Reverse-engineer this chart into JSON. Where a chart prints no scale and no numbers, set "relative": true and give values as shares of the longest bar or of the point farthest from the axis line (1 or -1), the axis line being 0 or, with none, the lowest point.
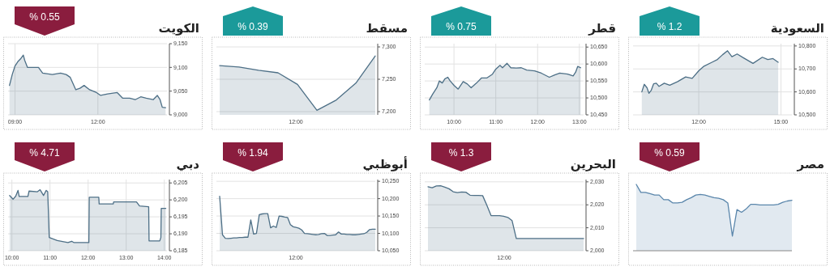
{
  "chart_data": [
    {
      "type": "area",
      "title": "الكويت",
      "annotations": [
        "% 0.55"
      ],
      "color": "#4d6f86",
      "grid": true,
      "xlim": [
        8.75,
        14.5
      ],
      "xticks": [
        {
          "value": 9,
          "label": "09:00"
        },
        {
          "value": 12,
          "label": "12:00"
        }
      ],
      "ylim": [
        9000,
        9150
      ],
      "yticks": [
        {
          "value": 9000,
          "label": "9,000"
        },
        {
          "value": 9050,
          "label": "9,050"
        },
        {
          "value": 9100,
          "label": "9,100"
        },
        {
          "value": 9150,
          "label": "9,150"
        }
      ],
      "x": [
        8.8,
        8.9,
        9.0,
        9.1,
        9.2,
        9.3,
        9.35,
        9.45,
        9.55,
        9.85,
        10.0,
        10.35,
        10.65,
        10.85,
        11.0,
        11.2,
        11.35,
        11.5,
        11.7,
        11.95,
        12.1,
        12.35,
        12.7,
        12.9,
        13.15,
        13.35,
        13.55,
        13.75,
        14.0,
        14.15,
        14.25,
        14.33,
        14.45
      ],
      "values": [
        9062,
        9085,
        9103,
        9112,
        9118,
        9126,
        9115,
        9100,
        9100,
        9100,
        9088,
        9085,
        9088,
        9085,
        9079,
        9053,
        9056,
        9062,
        9053,
        9047,
        9041,
        9044,
        9047,
        9035,
        9035,
        9032,
        9038,
        9035,
        9032,
        9041,
        9032,
        9016,
        9015
      ]
    },
    {
      "type": "area",
      "title": "مسقط",
      "annotations": [
        "% 0.39",
        "12:00"
      ],
      "color": "#4d6f86",
      "grid": true,
      "ylim": [
        7195,
        7305
      ],
      "yticks": [
        {
          "value": 7200,
          "label": "7,200"
        },
        {
          "value": 7250,
          "label": "7,250"
        },
        {
          "value": 7300,
          "label": "7,300"
        }
      ],
      "categories": [
        null,
        null,
        null,
        null,
        null,
        null,
        null,
        null,
        null
      ],
      "values": [
        7271,
        7269,
        7264,
        7260,
        7242,
        7202,
        7218,
        7244,
        7286
      ]
    },
    {
      "type": "area",
      "title": "قطر",
      "annotations": [
        "% 0.75"
      ],
      "color": "#4d6f86",
      "grid": true,
      "xlim": [
        9.3,
        13.1
      ],
      "xticks": [
        {
          "value": 10,
          "label": "10:00"
        },
        {
          "value": 11,
          "label": "11:00"
        },
        {
          "value": 12,
          "label": "12:00"
        },
        {
          "value": 13,
          "label": "13:00"
        }
      ],
      "ylim": [
        10450,
        10660
      ],
      "yticks": [
        {
          "value": 10450,
          "label": "10,450"
        },
        {
          "value": 10500,
          "label": "10,500"
        },
        {
          "value": 10550,
          "label": "10,550"
        },
        {
          "value": 10600,
          "label": "10,600"
        },
        {
          "value": 10650,
          "label": "10,650"
        }
      ],
      "x": [
        9.41,
        9.49,
        9.59,
        9.65,
        9.72,
        9.78,
        9.85,
        9.91,
        10.0,
        10.1,
        10.22,
        10.32,
        10.41,
        10.54,
        10.66,
        10.79,
        10.92,
        11.0,
        11.1,
        11.16,
        11.27,
        11.36,
        11.49,
        11.61,
        11.74,
        11.93,
        12.09,
        12.28,
        12.41,
        12.53,
        12.72,
        12.85,
        12.91,
        12.96,
        13.03
      ],
      "values": [
        10494,
        10511,
        10530,
        10550,
        10544,
        10556,
        10561,
        10550,
        10537,
        10526,
        10548,
        10541,
        10530,
        10544,
        10559,
        10559,
        10570,
        10585,
        10596,
        10589,
        10602,
        10589,
        10588,
        10589,
        10582,
        10580,
        10573,
        10561,
        10568,
        10573,
        10570,
        10565,
        10576,
        10593,
        10589
      ]
    },
    {
      "type": "area",
      "title": "السعودية",
      "annotations": [
        "% 1.2"
      ],
      "color": "#4d6f86",
      "grid": true,
      "xlim": [
        9.6,
        15.4
      ],
      "xticks": [
        {
          "value": 12,
          "label": "12:00"
        },
        {
          "value": 15,
          "label": "15:00"
        }
      ],
      "ylim": [
        10500,
        10810
      ],
      "yticks": [
        {
          "value": 10500,
          "label": "10,500"
        },
        {
          "value": 10600,
          "label": "10,600"
        },
        {
          "value": 10700,
          "label": "10,700"
        },
        {
          "value": 10800,
          "label": "10,800"
        }
      ],
      "x": [
        9.92,
        10.01,
        10.11,
        10.18,
        10.26,
        10.35,
        10.45,
        10.55,
        10.74,
        10.94,
        11.23,
        11.52,
        11.76,
        12.0,
        12.19,
        12.48,
        12.68,
        12.87,
        13.05,
        13.21,
        13.4,
        13.65,
        13.98,
        14.32,
        14.52,
        14.71,
        14.9
      ],
      "values": [
        10600,
        10633,
        10618,
        10594,
        10606,
        10635,
        10638,
        10624,
        10638,
        10629,
        10645,
        10665,
        10659,
        10692,
        10712,
        10729,
        10741,
        10762,
        10779,
        10753,
        10765,
        10747,
        10724,
        10751,
        10741,
        10745,
        10729
      ]
    },
    {
      "type": "area",
      "title": "دبي",
      "annotations": [
        "% 4.71"
      ],
      "color": "#4d6f86",
      "grid": true,
      "xlim": [
        9.9,
        14.07
      ],
      "xticks": [
        {
          "value": 10,
          "label": "10:00"
        },
        {
          "value": 11,
          "label": "11:00"
        },
        {
          "value": 12,
          "label": "12:00"
        },
        {
          "value": 13,
          "label": "13:00"
        },
        {
          "value": 14,
          "label": "14:00"
        }
      ],
      "ylim": [
        6185,
        6206
      ],
      "yticks": [
        {
          "value": 6185,
          "label": "6,185"
        },
        {
          "value": 6190,
          "label": "6,190"
        },
        {
          "value": 6195,
          "label": "6,195"
        },
        {
          "value": 6200,
          "label": "6,200"
        },
        {
          "value": 6205,
          "label": "6,205"
        }
      ],
      "x": [
        9.94,
        10.03,
        10.1,
        10.16,
        10.19,
        10.42,
        10.45,
        10.67,
        10.74,
        10.83,
        10.9,
        10.94,
        10.98,
        11.19,
        11.47,
        11.57,
        11.63,
        12.02,
        12.03,
        12.28,
        12.29,
        12.66,
        12.67,
        13.27,
        13.35,
        13.59,
        13.6,
        13.88,
        13.91,
        13.92,
        14.04
      ],
      "values": [
        6201.3,
        6200.2,
        6201.1,
        6202.8,
        6201,
        6201,
        6202.6,
        6202.4,
        6203,
        6201.3,
        6202.8,
        6202.4,
        6188.9,
        6188,
        6187.4,
        6187.8,
        6187.4,
        6187.4,
        6200.8,
        6200.8,
        6198.8,
        6198.8,
        6199.4,
        6199.4,
        6198.2,
        6198,
        6187.9,
        6187.9,
        6188.9,
        6197.5,
        6197.5
      ]
    },
    {
      "type": "area",
      "title": "أبوظبي",
      "annotations": [
        "% 1.94",
        "12:00"
      ],
      "color": "#4d6f86",
      "grid": true,
      "ylim": [
        10050,
        10255
      ],
      "yticks": [
        {
          "value": 10050,
          "label": "10,050"
        },
        {
          "value": 10100,
          "label": "10,100"
        },
        {
          "value": 10150,
          "label": "10,150"
        },
        {
          "value": 10200,
          "label": "10,200"
        },
        {
          "value": 10250,
          "label": "10,250"
        }
      ],
      "categories": [
        null,
        null,
        null,
        null,
        null,
        null,
        null,
        null,
        null,
        null,
        null,
        null,
        null,
        null,
        null,
        null,
        null,
        null,
        null,
        null,
        null,
        null,
        null,
        null,
        null,
        null,
        null,
        null,
        null,
        null,
        null,
        null,
        null,
        null,
        null,
        null,
        null,
        null,
        null,
        null,
        null,
        null,
        null,
        null,
        null,
        null,
        null,
        null,
        null,
        null,
        null,
        null,
        null,
        null,
        null,
        null
      ],
      "values": [
        10207,
        10096,
        10086,
        10085,
        10086,
        10087,
        10087,
        10088,
        10088,
        10089,
        10089,
        10139,
        10098,
        10100,
        10154,
        10156,
        10157,
        10157,
        10116,
        10121,
        10117,
        10150,
        10149,
        10147,
        10146,
        10125,
        10119,
        10117,
        10115,
        10110,
        10100,
        10099,
        10098,
        10097,
        10096,
        10097,
        10099,
        10100,
        10094,
        10094,
        10095,
        10096,
        10104,
        10098,
        10098,
        10097,
        10097,
        10096,
        10096,
        10097,
        10098,
        10099,
        10103,
        10111,
        10112,
        10112
      ]
    },
    {
      "type": "area",
      "title": "البحرين",
      "annotations": [
        "% 1.3",
        "12:00"
      ],
      "color": "#4d6f86",
      "grid": true,
      "ylim": [
        2000,
        2031
      ],
      "yticks": [
        {
          "value": 2000,
          "label": "2,000"
        },
        {
          "value": 2010,
          "label": "2,010"
        },
        {
          "value": 2020,
          "label": "2,020"
        },
        {
          "value": 2030,
          "label": "2,030"
        }
      ],
      "categories": [
        null,
        null,
        null,
        null,
        null,
        null,
        null,
        null,
        null,
        null,
        null,
        null,
        null,
        null,
        null,
        null,
        null,
        null,
        null,
        null,
        null,
        null,
        null,
        null,
        null,
        null,
        null,
        null,
        null,
        null,
        null,
        null,
        null,
        null,
        null,
        null,
        null,
        null
      ],
      "values": [
        2027.9,
        2027.4,
        2028.2,
        2028.3,
        2027.7,
        2027.0,
        2025.7,
        2025.3,
        2025.6,
        2025.5,
        2024.2,
        2024.1,
        2024.1,
        2024.0,
        2019.8,
        2015.3,
        2015.3,
        2015.3,
        2015.0,
        2014.5,
        2013.1,
        2005.3,
        2005.3,
        2005.3,
        2005.3,
        2005.3,
        2005.3,
        2005.3,
        2005.3,
        2005.3,
        2005.3,
        2005.3,
        2005.3,
        2005.3,
        2005.3,
        2005.3,
        2005.3,
        2005.3
      ]
    },
    {
      "type": "area",
      "title": "مصر",
      "annotations": [
        "% 0.59"
      ],
      "color": "#5a86ab",
      "relative": true,
      "categories": [
        null,
        null,
        null,
        null,
        null,
        null,
        null,
        null,
        null,
        null,
        null,
        null,
        null,
        null,
        null,
        null,
        null,
        null,
        null,
        null,
        null,
        null,
        null,
        null,
        null,
        null,
        null,
        null,
        null,
        null,
        null,
        null,
        null,
        null,
        null
      ],
      "values": [
        1.0,
        0.88,
        0.88,
        0.86,
        0.84,
        0.84,
        0.77,
        0.77,
        0.72,
        0.72,
        0.73,
        0.77,
        0.8,
        0.84,
        0.85,
        0.84,
        0.82,
        0.8,
        0.79,
        0.77,
        0.72,
        0.22,
        0.62,
        0.58,
        0.63,
        0.7,
        0.7,
        0.69,
        0.69,
        0.69,
        0.69,
        0.7,
        0.73,
        0.75,
        0.76
      ]
    }
  ]
}
